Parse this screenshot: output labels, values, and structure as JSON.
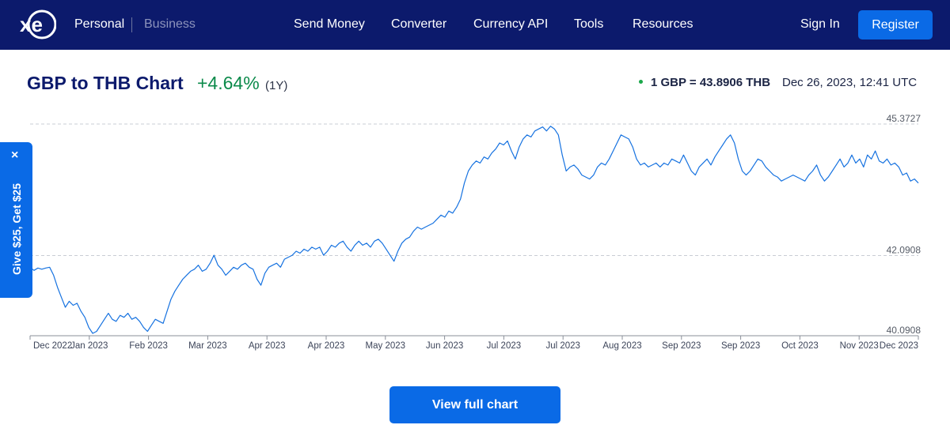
{
  "nav": {
    "logo_alt": "xe",
    "personal": "Personal",
    "business": "Business",
    "links": [
      "Send Money",
      "Converter",
      "Currency API",
      "Tools",
      "Resources"
    ],
    "sign_in": "Sign In",
    "register": "Register"
  },
  "header": {
    "title": "GBP to THB Chart",
    "change": "+4.64%",
    "period": "(1Y)",
    "rate": "1 GBP = 43.8906 THB",
    "timestamp": "Dec 26, 2023, 12:41 UTC",
    "status_color": "#1ba74a"
  },
  "promo": {
    "close": "×",
    "text": "Give $25, Get $25"
  },
  "button": {
    "label": "View full chart"
  },
  "colors": {
    "nav_bg": "#0c1a6c",
    "accent": "#0a6ae6",
    "positive": "#0b8a4a",
    "line": "#1672e0"
  },
  "chart_data": {
    "type": "line",
    "title": "GBP to THB Chart",
    "series": [
      {
        "values": [
          [
            0,
            41.8
          ],
          [
            1,
            41.72
          ],
          [
            2,
            41.78
          ],
          [
            3,
            41.75
          ],
          [
            4,
            41.78
          ],
          [
            5,
            41.8
          ],
          [
            6,
            41.6
          ],
          [
            7,
            41.3
          ],
          [
            8,
            41.05
          ],
          [
            9,
            40.8
          ],
          [
            10,
            40.95
          ],
          [
            11,
            40.85
          ],
          [
            12,
            40.9
          ],
          [
            13,
            40.7
          ],
          [
            14,
            40.55
          ],
          [
            15,
            40.3
          ],
          [
            16,
            40.15
          ],
          [
            17,
            40.2
          ],
          [
            18,
            40.35
          ],
          [
            19,
            40.5
          ],
          [
            20,
            40.65
          ],
          [
            21,
            40.5
          ],
          [
            22,
            40.45
          ],
          [
            23,
            40.6
          ],
          [
            24,
            40.55
          ],
          [
            25,
            40.65
          ],
          [
            26,
            40.5
          ],
          [
            27,
            40.55
          ],
          [
            28,
            40.45
          ],
          [
            29,
            40.3
          ],
          [
            30,
            40.2
          ],
          [
            31,
            40.35
          ],
          [
            32,
            40.5
          ],
          [
            33,
            40.45
          ],
          [
            34,
            40.4
          ],
          [
            35,
            40.7
          ],
          [
            36,
            41.0
          ],
          [
            37,
            41.2
          ],
          [
            38,
            41.35
          ],
          [
            39,
            41.5
          ],
          [
            40,
            41.6
          ],
          [
            41,
            41.7
          ],
          [
            42,
            41.75
          ],
          [
            43,
            41.85
          ],
          [
            44,
            41.7
          ],
          [
            45,
            41.75
          ],
          [
            46,
            41.9
          ],
          [
            47,
            42.1
          ],
          [
            48,
            41.85
          ],
          [
            49,
            41.75
          ],
          [
            50,
            41.6
          ],
          [
            51,
            41.7
          ],
          [
            52,
            41.8
          ],
          [
            53,
            41.75
          ],
          [
            54,
            41.85
          ],
          [
            55,
            41.9
          ],
          [
            56,
            41.8
          ],
          [
            57,
            41.75
          ],
          [
            58,
            41.5
          ],
          [
            59,
            41.35
          ],
          [
            60,
            41.65
          ],
          [
            61,
            41.8
          ],
          [
            62,
            41.85
          ],
          [
            63,
            41.9
          ],
          [
            64,
            41.8
          ],
          [
            65,
            42.0
          ],
          [
            66,
            42.05
          ],
          [
            67,
            42.1
          ],
          [
            68,
            42.2
          ],
          [
            69,
            42.15
          ],
          [
            70,
            42.25
          ],
          [
            71,
            42.2
          ],
          [
            72,
            42.3
          ],
          [
            73,
            42.25
          ],
          [
            74,
            42.3
          ],
          [
            75,
            42.1
          ],
          [
            76,
            42.2
          ],
          [
            77,
            42.35
          ],
          [
            78,
            42.3
          ],
          [
            79,
            42.4
          ],
          [
            80,
            42.45
          ],
          [
            81,
            42.3
          ],
          [
            82,
            42.2
          ],
          [
            83,
            42.35
          ],
          [
            84,
            42.45
          ],
          [
            85,
            42.35
          ],
          [
            86,
            42.4
          ],
          [
            87,
            42.3
          ],
          [
            88,
            42.45
          ],
          [
            89,
            42.5
          ],
          [
            90,
            42.4
          ],
          [
            91,
            42.25
          ],
          [
            92,
            42.1
          ],
          [
            93,
            41.95
          ],
          [
            94,
            42.2
          ],
          [
            95,
            42.4
          ],
          [
            96,
            42.5
          ],
          [
            97,
            42.55
          ],
          [
            98,
            42.7
          ],
          [
            99,
            42.8
          ],
          [
            100,
            42.75
          ],
          [
            101,
            42.8
          ],
          [
            102,
            42.85
          ],
          [
            103,
            42.9
          ],
          [
            104,
            43.0
          ],
          [
            105,
            43.1
          ],
          [
            106,
            43.05
          ],
          [
            107,
            43.2
          ],
          [
            108,
            43.15
          ],
          [
            109,
            43.3
          ],
          [
            110,
            43.5
          ],
          [
            111,
            43.9
          ],
          [
            112,
            44.2
          ],
          [
            113,
            44.35
          ],
          [
            114,
            44.45
          ],
          [
            115,
            44.4
          ],
          [
            116,
            44.55
          ],
          [
            117,
            44.5
          ],
          [
            118,
            44.65
          ],
          [
            119,
            44.75
          ],
          [
            120,
            44.9
          ],
          [
            121,
            44.85
          ],
          [
            122,
            44.95
          ],
          [
            123,
            44.7
          ],
          [
            124,
            44.5
          ],
          [
            125,
            44.8
          ],
          [
            126,
            45.0
          ],
          [
            127,
            45.1
          ],
          [
            128,
            45.05
          ],
          [
            129,
            45.2
          ],
          [
            130,
            45.25
          ],
          [
            131,
            45.3
          ],
          [
            132,
            45.2
          ],
          [
            133,
            45.32
          ],
          [
            134,
            45.25
          ],
          [
            135,
            45.1
          ],
          [
            136,
            44.6
          ],
          [
            137,
            44.2
          ],
          [
            138,
            44.3
          ],
          [
            139,
            44.35
          ],
          [
            140,
            44.25
          ],
          [
            141,
            44.1
          ],
          [
            142,
            44.05
          ],
          [
            143,
            44.0
          ],
          [
            144,
            44.1
          ],
          [
            145,
            44.3
          ],
          [
            146,
            44.4
          ],
          [
            147,
            44.35
          ],
          [
            148,
            44.5
          ],
          [
            149,
            44.7
          ],
          [
            150,
            44.9
          ],
          [
            151,
            45.1
          ],
          [
            152,
            45.05
          ],
          [
            153,
            45.0
          ],
          [
            154,
            44.8
          ],
          [
            155,
            44.5
          ],
          [
            156,
            44.35
          ],
          [
            157,
            44.4
          ],
          [
            158,
            44.3
          ],
          [
            159,
            44.35
          ],
          [
            160,
            44.4
          ],
          [
            161,
            44.3
          ],
          [
            162,
            44.4
          ],
          [
            163,
            44.35
          ],
          [
            164,
            44.5
          ],
          [
            165,
            44.45
          ],
          [
            166,
            44.4
          ],
          [
            167,
            44.6
          ],
          [
            168,
            44.4
          ],
          [
            169,
            44.2
          ],
          [
            170,
            44.1
          ],
          [
            171,
            44.3
          ],
          [
            172,
            44.4
          ],
          [
            173,
            44.5
          ],
          [
            174,
            44.35
          ],
          [
            175,
            44.55
          ],
          [
            176,
            44.7
          ],
          [
            177,
            44.85
          ],
          [
            178,
            45.0
          ],
          [
            179,
            45.1
          ],
          [
            180,
            44.9
          ],
          [
            181,
            44.5
          ],
          [
            182,
            44.2
          ],
          [
            183,
            44.1
          ],
          [
            184,
            44.2
          ],
          [
            185,
            44.35
          ],
          [
            186,
            44.5
          ],
          [
            187,
            44.45
          ],
          [
            188,
            44.3
          ],
          [
            189,
            44.2
          ],
          [
            190,
            44.1
          ],
          [
            191,
            44.05
          ],
          [
            192,
            43.95
          ],
          [
            193,
            44.0
          ],
          [
            194,
            44.05
          ],
          [
            195,
            44.1
          ],
          [
            196,
            44.05
          ],
          [
            197,
            44.0
          ],
          [
            198,
            43.95
          ],
          [
            199,
            44.1
          ],
          [
            200,
            44.2
          ],
          [
            201,
            44.35
          ],
          [
            202,
            44.1
          ],
          [
            203,
            43.95
          ],
          [
            204,
            44.05
          ],
          [
            205,
            44.2
          ],
          [
            206,
            44.35
          ],
          [
            207,
            44.5
          ],
          [
            208,
            44.3
          ],
          [
            209,
            44.4
          ],
          [
            210,
            44.6
          ],
          [
            211,
            44.4
          ],
          [
            212,
            44.5
          ],
          [
            213,
            44.3
          ],
          [
            214,
            44.6
          ],
          [
            215,
            44.5
          ],
          [
            216,
            44.7
          ],
          [
            217,
            44.45
          ],
          [
            218,
            44.4
          ],
          [
            219,
            44.5
          ],
          [
            220,
            44.35
          ],
          [
            221,
            44.4
          ],
          [
            222,
            44.3
          ],
          [
            223,
            44.1
          ],
          [
            224,
            44.15
          ],
          [
            225,
            43.95
          ],
          [
            226,
            44.0
          ],
          [
            227,
            43.9
          ]
        ]
      }
    ],
    "x_tick_labels": [
      "Dec 2022",
      "Jan 2023",
      "Feb 2023",
      "Mar 2023",
      "Apr 2023",
      "Apr 2023",
      "May 2023",
      "Jun 2023",
      "Jul 2023",
      "Jul 2023",
      "Aug 2023",
      "Sep 2023",
      "Sep 2023",
      "Oct 2023",
      "Nov 2023",
      "Dec 2023"
    ],
    "y_ticks": [
      40.0908,
      42.0908,
      45.3727
    ],
    "y_tick_labels": [
      "40.0908",
      "42.0908",
      "45.3727"
    ],
    "ylim": [
      40.0908,
      45.3727
    ],
    "grid": "dashed horizontal at y ticks",
    "legend": "none"
  }
}
